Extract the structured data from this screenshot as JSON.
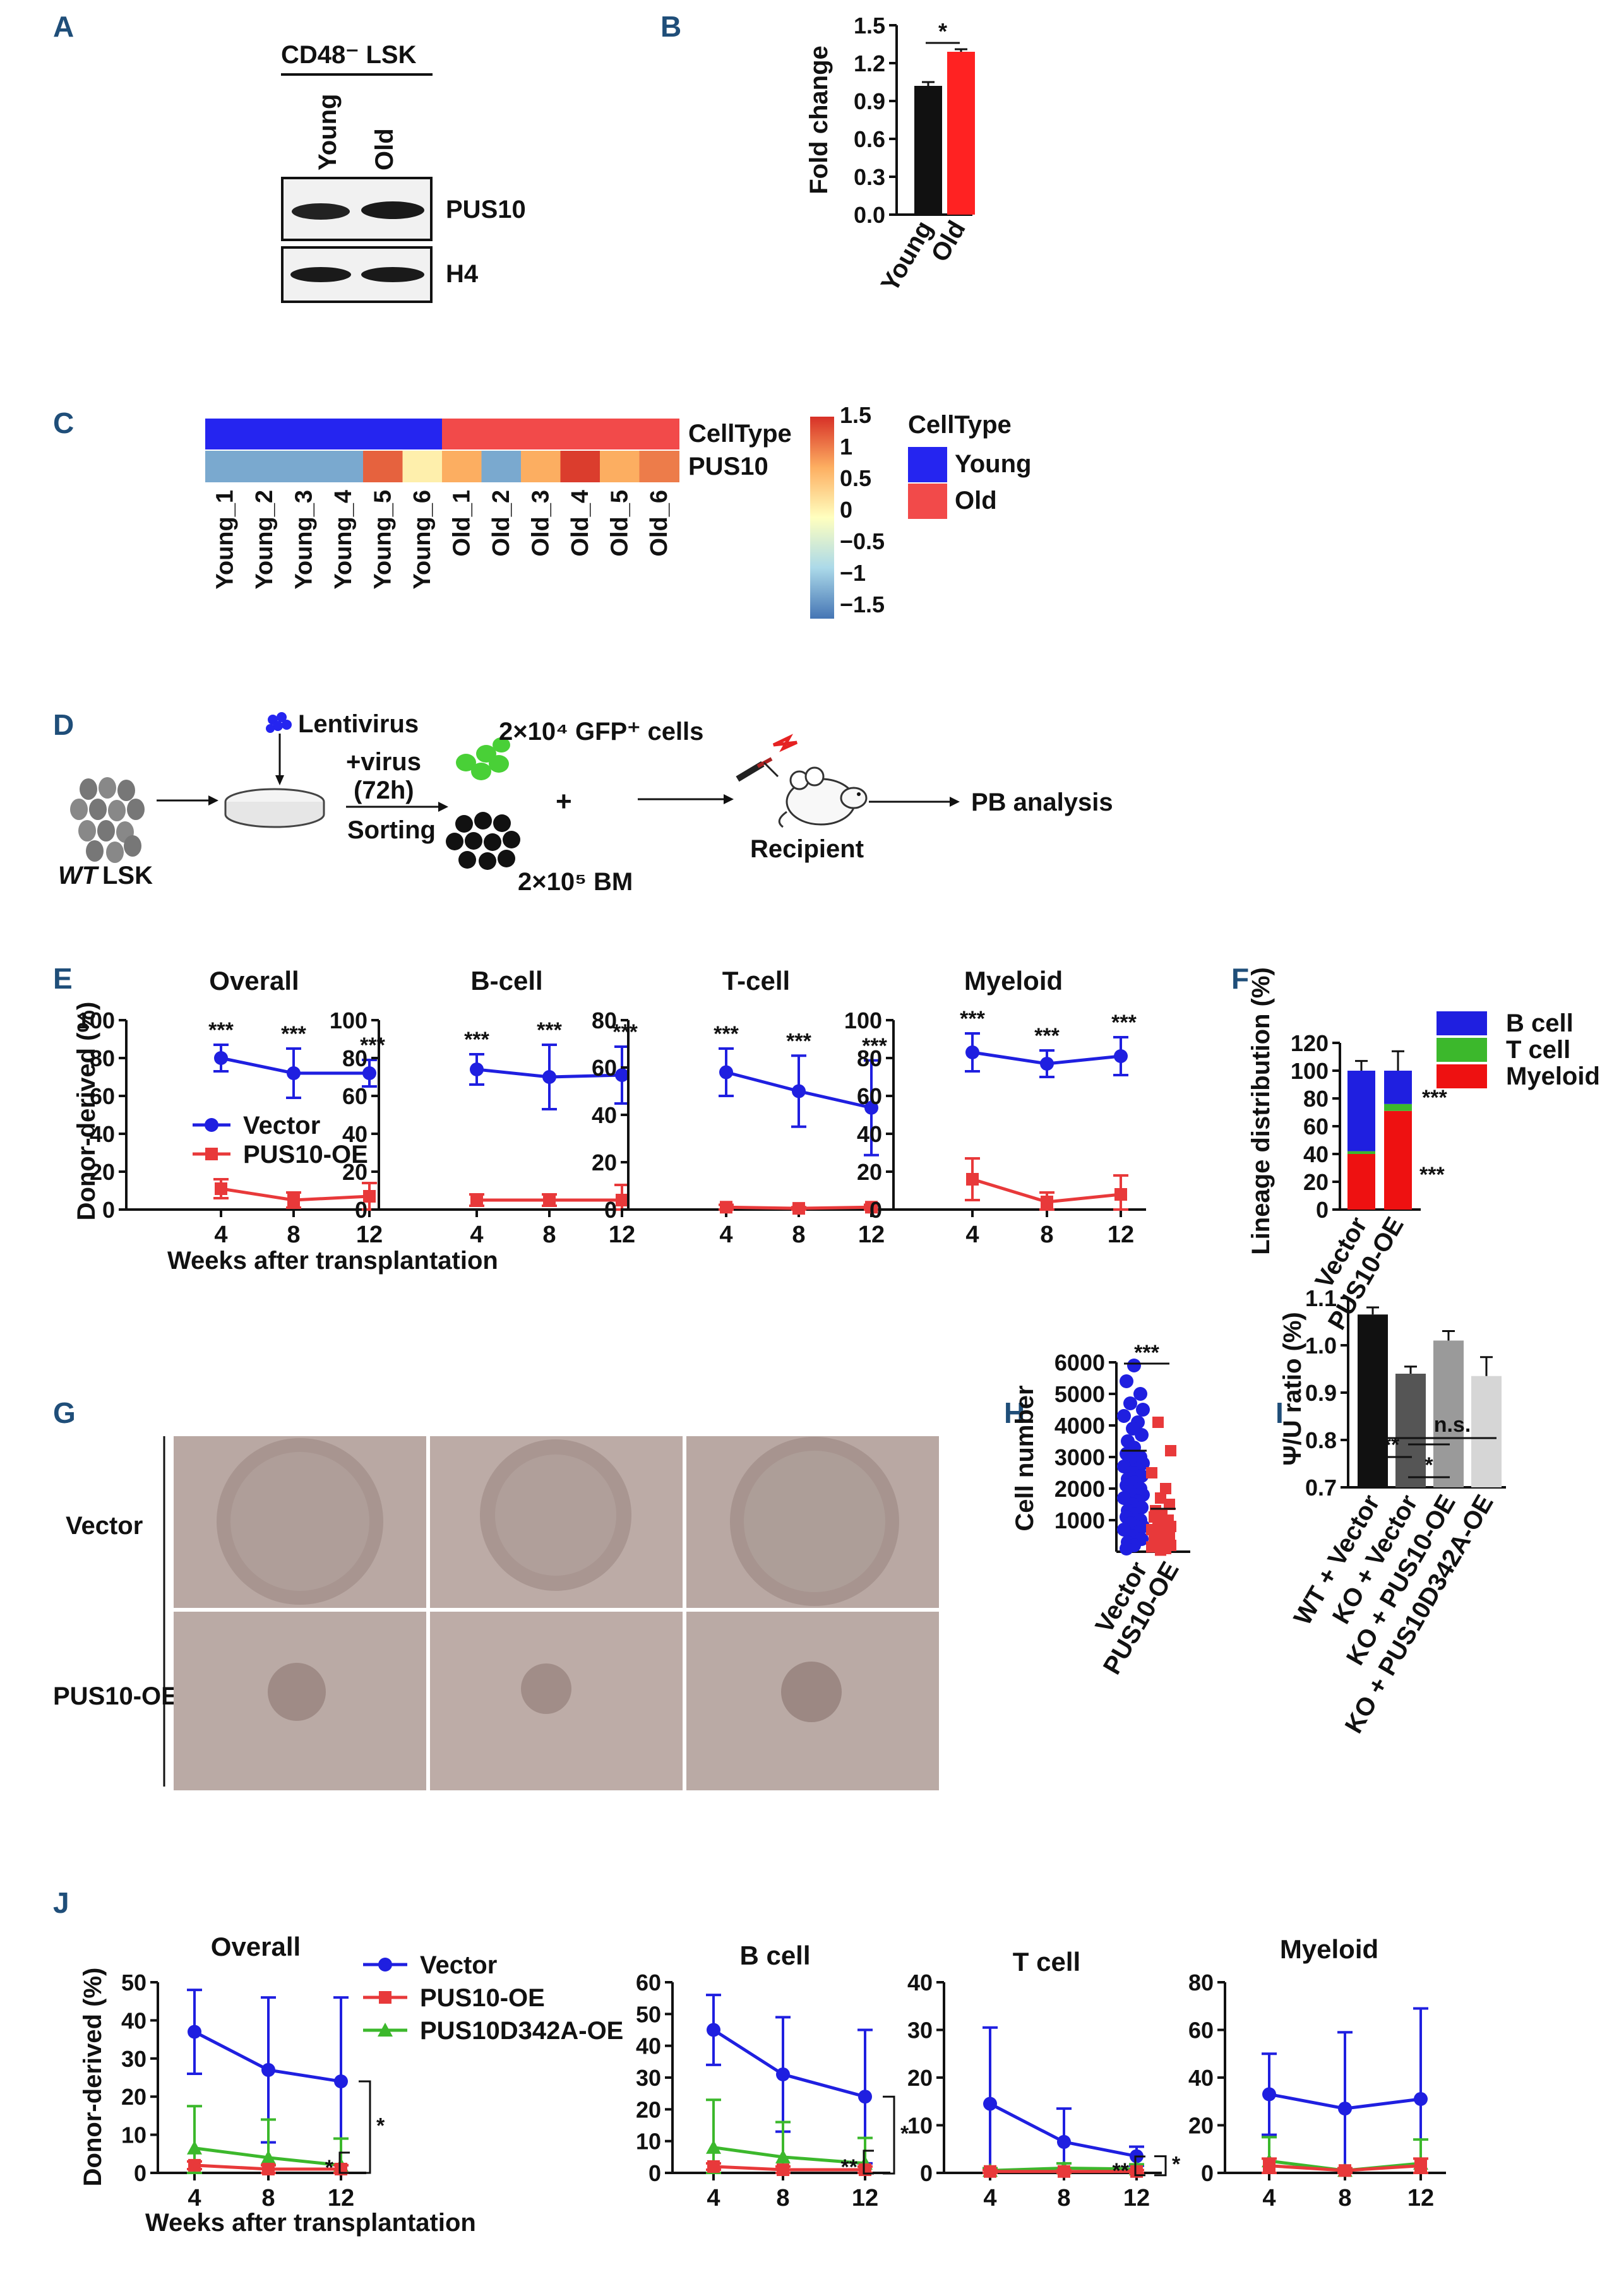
{
  "panel_labels": {
    "A": "A",
    "B": "B",
    "C": "C",
    "D": "D",
    "E": "E",
    "F": "F",
    "G": "G",
    "H": "H",
    "I": "I",
    "J": "J"
  },
  "colors": {
    "vector": "#1f1fe0",
    "oe": "#e8393a",
    "d342a": "#3cb82c",
    "black": "#111111",
    "panel": "#1f4e79",
    "young": "#2525f0",
    "old": "#f24a4a",
    "heat_low": "#4575b4",
    "heat_high": "#d73027",
    "b": "#1f1fe0",
    "t": "#3cb82c",
    "m": "#ee1111"
  },
  "panelA": {
    "title": "CD48⁻ LSK",
    "col_young": "Young",
    "col_old": "Old",
    "row1": "PUS10",
    "row2": "H4"
  },
  "panelD": {
    "lentivirus": "Lentivirus",
    "virus": "+virus",
    "time": "(72h)",
    "sorting": "Sorting",
    "gfp_cells": "2×10⁴ GFP⁺ cells",
    "bm": "2×10⁵ BM",
    "plus": "+",
    "wt": "WT",
    "lsk": "LSK",
    "recipient": "Recipient",
    "pb": "PB analysis"
  },
  "panelG": {
    "row_vector": "Vector",
    "row_oe": "PUS10-OE"
  },
  "chart_data": [
    {
      "id": "B",
      "type": "bar",
      "categories": [
        "Young",
        "Old"
      ],
      "values": [
        1.02,
        1.29
      ],
      "errors": [
        0.03,
        0.02
      ],
      "ylabel": "Fold change",
      "ylim": [
        0,
        1.5
      ],
      "yticks": [
        "0.0",
        "0.3",
        "0.6",
        "0.9",
        "1.2",
        "1.5"
      ],
      "sig": "*"
    },
    {
      "id": "C",
      "type": "heatmap",
      "samples": [
        "Young_1",
        "Young_2",
        "Young_3",
        "Young_4",
        "Young_5",
        "Young_6",
        "Old_1",
        "Old_2",
        "Old_3",
        "Old_4",
        "Old_5",
        "Old_6"
      ],
      "celltype": [
        "Young",
        "Young",
        "Young",
        "Young",
        "Young",
        "Young",
        "Old",
        "Old",
        "Old",
        "Old",
        "Old",
        "Old"
      ],
      "pus10": [
        -0.8,
        -0.8,
        -0.8,
        -0.8,
        1.1,
        0.1,
        0.5,
        -0.8,
        0.5,
        1.4,
        0.5,
        0.9
      ],
      "row_labels": [
        "CellType",
        "PUS10"
      ],
      "scale_ticks": [
        "1.5",
        "1",
        "0.5",
        "0",
        "−0.5",
        "−1",
        "−1.5"
      ],
      "legend_title": "CellType",
      "legend": [
        "Young",
        "Old"
      ]
    },
    {
      "id": "E",
      "type": "line",
      "x": [
        4,
        8,
        12
      ],
      "xlabel": "Weeks after transplantation",
      "ylabel": "Donor-derived (%)",
      "legend": [
        "Vector",
        "PUS10-OE"
      ],
      "subplots": [
        {
          "title": "Overall",
          "ylim": [
            0,
            100
          ],
          "yticks": [
            "0",
            "20",
            "40",
            "60",
            "80",
            "100"
          ],
          "vector": [
            80,
            72,
            72
          ],
          "vector_err": [
            7,
            13,
            7
          ],
          "oe": [
            11,
            5,
            7
          ],
          "oe_err": [
            5,
            4,
            7
          ],
          "sig": [
            "***",
            "***",
            "***"
          ]
        },
        {
          "title": "B-cell",
          "ylim": [
            0,
            100
          ],
          "yticks": [
            "0",
            "20",
            "40",
            "60",
            "80",
            "100"
          ],
          "vector": [
            74,
            70,
            71
          ],
          "vector_err": [
            8,
            17,
            15
          ],
          "oe": [
            5,
            5,
            5
          ],
          "oe_err": [
            3,
            3,
            8
          ],
          "sig": [
            "***",
            "***",
            "***"
          ]
        },
        {
          "title": "T-cell",
          "ylim": [
            0,
            80
          ],
          "yticks": [
            "0",
            "20",
            "40",
            "60",
            "80"
          ],
          "vector": [
            58,
            50,
            43
          ],
          "vector_err": [
            10,
            15,
            20
          ],
          "oe": [
            1,
            0.5,
            1
          ],
          "oe_err": [
            1,
            0.5,
            1
          ],
          "sig": [
            "***",
            "***",
            "***"
          ]
        },
        {
          "title": "Myeloid",
          "ylim": [
            0,
            100
          ],
          "yticks": [
            "0",
            "20",
            "40",
            "60",
            "80",
            "100"
          ],
          "vector": [
            83,
            77,
            81
          ],
          "vector_err": [
            10,
            7,
            10
          ],
          "oe": [
            16,
            4,
            8
          ],
          "oe_err": [
            11,
            5,
            10
          ],
          "sig": [
            "***",
            "***",
            "***"
          ]
        }
      ]
    },
    {
      "id": "F",
      "type": "bar",
      "stacked": true,
      "categories": [
        "Vector",
        "PUS10-OE"
      ],
      "series": [
        {
          "name": "Myeloid",
          "values": [
            40,
            71
          ]
        },
        {
          "name": "T cell",
          "values": [
            2,
            5
          ]
        },
        {
          "name": "B cell",
          "values": [
            58,
            24
          ]
        }
      ],
      "total_err": [
        7,
        14
      ],
      "ylabel": "Lineage distribution (%)",
      "ylim": [
        0,
        120
      ],
      "yticks": [
        "0",
        "20",
        "40",
        "60",
        "80",
        "100",
        "120"
      ],
      "sig": [
        "***",
        "***"
      ]
    },
    {
      "id": "H",
      "type": "scatter",
      "categories": [
        "Vector",
        "PUS10-OE"
      ],
      "ylabel": "Cell number",
      "ylim": [
        0,
        6000
      ],
      "yticks": [
        "1000",
        "2000",
        "3000",
        "4000",
        "5000",
        "6000"
      ],
      "sig": "***",
      "vector_points": [
        5900,
        5400,
        5000,
        4700,
        4500,
        4300,
        4100,
        3900,
        3700,
        3500,
        3300,
        3100,
        3000,
        2900,
        2800,
        2700,
        2600,
        2500,
        2400,
        2300,
        2200,
        2100,
        2000,
        1900,
        1800,
        1700,
        1600,
        1500,
        1400,
        1300,
        1200,
        1100,
        1000,
        900,
        800,
        700,
        600,
        500,
        400,
        300,
        200,
        100
      ],
      "oe_points": [
        4100,
        3200,
        2500,
        2000,
        1700,
        1500,
        1300,
        1200,
        1100,
        1000,
        900,
        800,
        700,
        650,
        600,
        500,
        450,
        400,
        350,
        300,
        250,
        200,
        150,
        100,
        50
      ]
    },
    {
      "id": "I",
      "type": "bar",
      "categories": [
        "WT + Vector",
        "KO + Vector",
        "KO + PUS10-OE",
        "KO + PUS10D342A-OE"
      ],
      "values": [
        1.065,
        0.94,
        1.01,
        0.935
      ],
      "errors": [
        0.015,
        0.015,
        0.02,
        0.04
      ],
      "bar_colors": [
        "#111111",
        "#555555",
        "#9a9a9a",
        "#d6d6d6"
      ],
      "ylabel": "Ψ/U ratio (%)",
      "ylim": [
        0.7,
        1.1
      ],
      "yticks": [
        "0.7",
        "0.8",
        "0.9",
        "1.0",
        "1.1"
      ],
      "sig": [
        {
          "label": "**"
        },
        {
          "label": "*"
        },
        {
          "label": "n.s."
        }
      ]
    },
    {
      "id": "J",
      "type": "line",
      "x": [
        4,
        8,
        12
      ],
      "xlabel": "Weeks after transplantation",
      "ylabel": "Donor-derived (%)",
      "legend": [
        "Vector",
        "PUS10-OE",
        "PUS10D342A-OE"
      ],
      "subplots": [
        {
          "title": "Overall",
          "ylim": [
            0,
            50
          ],
          "yticks": [
            "0",
            "10",
            "20",
            "30",
            "40",
            "50"
          ],
          "vector": [
            37,
            27,
            24
          ],
          "vector_err": [
            11,
            19,
            22
          ],
          "oe": [
            2,
            1,
            1
          ],
          "oe_err": [
            1,
            1,
            1
          ],
          "d342a": [
            6.5,
            4,
            2
          ],
          "d342a_err": [
            11,
            10,
            7
          ],
          "sig": [
            "*",
            "*"
          ]
        },
        {
          "title": "B cell",
          "ylim": [
            0,
            60
          ],
          "yticks": [
            "0",
            "10",
            "20",
            "30",
            "40",
            "50",
            "60"
          ],
          "vector": [
            45,
            31,
            24
          ],
          "vector_err": [
            11,
            18,
            21
          ],
          "oe": [
            2,
            1,
            1
          ],
          "oe_err": [
            1,
            1,
            1
          ],
          "d342a": [
            8,
            5,
            3
          ],
          "d342a_err": [
            15,
            11,
            8
          ],
          "sig": [
            "**",
            "*"
          ]
        },
        {
          "title": "T cell",
          "ylim": [
            0,
            40
          ],
          "yticks": [
            "0",
            "10",
            "20",
            "30",
            "40"
          ],
          "vector": [
            14.5,
            6.5,
            3.5
          ],
          "vector_err": [
            16,
            7,
            2
          ],
          "oe": [
            0.3,
            0.3,
            0.3
          ],
          "oe_err": [
            0.3,
            0.3,
            0.3
          ],
          "d342a": [
            0.5,
            1,
            0.8
          ],
          "d342a_err": [
            0.5,
            1,
            1
          ],
          "sig": [
            "**",
            "*"
          ]
        },
        {
          "title": "Myeloid",
          "ylim": [
            0,
            80
          ],
          "yticks": [
            "0",
            "20",
            "40",
            "60",
            "80"
          ],
          "vector": [
            33,
            27,
            31
          ],
          "vector_err": [
            17,
            32,
            38
          ],
          "oe": [
            3,
            1,
            3
          ],
          "oe_err": [
            3,
            1,
            3
          ],
          "d342a": [
            5,
            1,
            4
          ],
          "d342a_err": [
            10,
            1,
            10
          ],
          "sig": []
        }
      ]
    }
  ]
}
